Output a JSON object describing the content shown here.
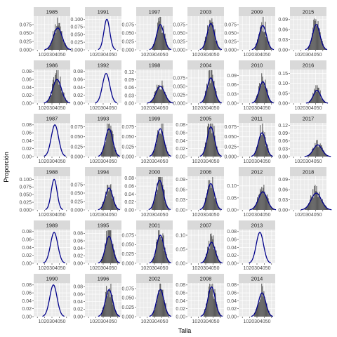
{
  "chart_data": {
    "type": "faceted-histogram-density",
    "xlabel": "Talla",
    "ylabel": "Proporción",
    "xlim": [
      5,
      55
    ],
    "x_ticks": [
      10,
      20,
      30,
      40,
      50
    ],
    "x_tick_label_text": "1020304050",
    "colors": {
      "bar": "#595959",
      "density": "#00008B",
      "strip_bg": "#d9d9d9",
      "panel_bg": "#ebebeb",
      "grid": "#ffffff"
    },
    "panels": [
      {
        "year": "1985",
        "col": 0,
        "row": 0,
        "ylim": [
          0,
          0.1
        ],
        "yticks": [
          "0.000",
          "0.025",
          "0.050",
          "0.075"
        ],
        "ytick_values": [
          0,
          0.025,
          0.05,
          0.075
        ],
        "mean": 38,
        "sd": 6,
        "peak": 0.065,
        "bars": true
      },
      {
        "year": "1986",
        "col": 0,
        "row": 1,
        "ylim": [
          0,
          0.085
        ],
        "yticks": [
          "0.00",
          "0.02",
          "0.04",
          "0.06",
          "0.08"
        ],
        "ytick_values": [
          0,
          0.02,
          0.04,
          0.06,
          0.08
        ],
        "mean": 37,
        "sd": 6,
        "peak": 0.06,
        "bars": true
      },
      {
        "year": "1987",
        "col": 0,
        "row": 2,
        "ylim": [
          0,
          0.085
        ],
        "yticks": [
          "0.00",
          "0.02",
          "0.04",
          "0.06",
          "0.08"
        ],
        "ytick_values": [
          0,
          0.02,
          0.04,
          0.06,
          0.08
        ],
        "mean": 34,
        "sd": 5,
        "peak": 0.08,
        "bars": false
      },
      {
        "year": "1988",
        "col": 0,
        "row": 3,
        "ylim": [
          0,
          0.11
        ],
        "yticks": [
          "0.000",
          "0.025",
          "0.050",
          "0.075",
          "0.100"
        ],
        "ytick_values": [
          0,
          0.025,
          0.05,
          0.075,
          0.1
        ],
        "mean": 33,
        "sd": 4,
        "peak": 0.1,
        "bars": false
      },
      {
        "year": "1989",
        "col": 0,
        "row": 4,
        "ylim": [
          0,
          0.085
        ],
        "yticks": [
          "0.00",
          "0.02",
          "0.04",
          "0.06",
          "0.08"
        ],
        "ytick_values": [
          0,
          0.02,
          0.04,
          0.06,
          0.08
        ],
        "mean": 33,
        "sd": 5,
        "peak": 0.078,
        "bars": false
      },
      {
        "year": "1990",
        "col": 0,
        "row": 5,
        "ylim": [
          0,
          0.085
        ],
        "yticks": [
          "0.00",
          "0.02",
          "0.04",
          "0.06",
          "0.08"
        ],
        "ytick_values": [
          0,
          0.02,
          0.04,
          0.06,
          0.08
        ],
        "mean": 32,
        "sd": 5,
        "peak": 0.08,
        "bars": false
      },
      {
        "year": "1991",
        "col": 1,
        "row": 0,
        "ylim": [
          0,
          0.11
        ],
        "yticks": [
          "0.000",
          "0.025",
          "0.050",
          "0.075",
          "0.100"
        ],
        "ytick_values": [
          0,
          0.025,
          0.05,
          0.075,
          0.1
        ],
        "mean": 35,
        "sd": 4,
        "peak": 0.1,
        "bars": false
      },
      {
        "year": "1992",
        "col": 1,
        "row": 1,
        "ylim": [
          0,
          0.085
        ],
        "yticks": [
          "0.00",
          "0.02",
          "0.04",
          "0.06",
          "0.08"
        ],
        "ytick_values": [
          0,
          0.02,
          0.04,
          0.06,
          0.08
        ],
        "mean": 34,
        "sd": 5,
        "peak": 0.075,
        "bars": false
      },
      {
        "year": "1993",
        "col": 1,
        "row": 2,
        "ylim": [
          0,
          0.085
        ],
        "yticks": [
          "0.000",
          "0.025",
          "0.050",
          "0.075"
        ],
        "ytick_values": [
          0,
          0.025,
          0.05,
          0.075
        ],
        "mean": 38,
        "sd": 5,
        "peak": 0.07,
        "bars": true
      },
      {
        "year": "1994",
        "col": 1,
        "row": 3,
        "ylim": [
          0,
          0.1
        ],
        "yticks": [
          "0.000",
          "0.025",
          "0.050",
          "0.075"
        ],
        "ytick_values": [
          0,
          0.025,
          0.05,
          0.075
        ],
        "mean": 38,
        "sd": 5,
        "peak": 0.065,
        "bars": true
      },
      {
        "year": "1995",
        "col": 1,
        "row": 4,
        "ylim": [
          0,
          0.09
        ],
        "yticks": [
          "0.00",
          "0.02",
          "0.04",
          "0.06",
          "0.08"
        ],
        "ytick_values": [
          0,
          0.02,
          0.04,
          0.06,
          0.08
        ],
        "mean": 38,
        "sd": 5,
        "peak": 0.072,
        "bars": true
      },
      {
        "year": "1996",
        "col": 1,
        "row": 5,
        "ylim": [
          0,
          0.09
        ],
        "yticks": [
          "0.00",
          "0.02",
          "0.04",
          "0.06",
          "0.08"
        ],
        "ytick_values": [
          0,
          0.02,
          0.04,
          0.06,
          0.08
        ],
        "mean": 38,
        "sd": 5,
        "peak": 0.072,
        "bars": true
      },
      {
        "year": "1997",
        "col": 2,
        "row": 0,
        "ylim": [
          0,
          0.1
        ],
        "yticks": [
          "0.000",
          "0.025",
          "0.050",
          "0.075"
        ],
        "ytick_values": [
          0,
          0.025,
          0.05,
          0.075
        ],
        "mean": 38,
        "sd": 5,
        "peak": 0.075,
        "bars": true
      },
      {
        "year": "1998",
        "col": 2,
        "row": 1,
        "ylim": [
          0,
          0.13
        ],
        "yticks": [
          "0.00",
          "0.03",
          "0.06",
          "0.09",
          "0.12"
        ],
        "ytick_values": [
          0,
          0.03,
          0.06,
          0.09,
          0.12
        ],
        "mean": 38,
        "sd": 6,
        "peak": 0.065,
        "bars": true
      },
      {
        "year": "1999",
        "col": 2,
        "row": 2,
        "ylim": [
          0,
          0.085
        ],
        "yticks": [
          "0.000",
          "0.025",
          "0.050",
          "0.075"
        ],
        "ytick_values": [
          0,
          0.025,
          0.05,
          0.075
        ],
        "mean": 38,
        "sd": 5,
        "peak": 0.07,
        "bars": true
      },
      {
        "year": "2000",
        "col": 2,
        "row": 3,
        "ylim": [
          0,
          0.085
        ],
        "yticks": [
          "0.00",
          "0.02",
          "0.04",
          "0.06",
          "0.08"
        ],
        "ytick_values": [
          0,
          0.02,
          0.04,
          0.06,
          0.08
        ],
        "mean": 37,
        "sd": 5,
        "peak": 0.075,
        "bars": true
      },
      {
        "year": "2001",
        "col": 2,
        "row": 4,
        "ylim": [
          0,
          0.09
        ],
        "yticks": [
          "0.000",
          "0.025",
          "0.050",
          "0.075"
        ],
        "ytick_values": [
          0,
          0.025,
          0.05,
          0.075
        ],
        "mean": 38,
        "sd": 5,
        "peak": 0.075,
        "bars": true
      },
      {
        "year": "2002",
        "col": 2,
        "row": 5,
        "ylim": [
          0,
          0.09
        ],
        "yticks": [
          "0.000",
          "0.025",
          "0.050",
          "0.075"
        ],
        "ytick_values": [
          0,
          0.025,
          0.05,
          0.075
        ],
        "mean": 38,
        "sd": 5,
        "peak": 0.072,
        "bars": true
      },
      {
        "year": "2003",
        "col": 3,
        "row": 0,
        "ylim": [
          0,
          0.1
        ],
        "yticks": [
          "0.000",
          "0.025",
          "0.050",
          "0.075"
        ],
        "ytick_values": [
          0,
          0.025,
          0.05,
          0.075
        ],
        "mean": 37,
        "sd": 5,
        "peak": 0.078,
        "bars": true
      },
      {
        "year": "2004",
        "col": 3,
        "row": 1,
        "ylim": [
          0,
          0.1
        ],
        "yticks": [
          "0.000",
          "0.025",
          "0.050",
          "0.075"
        ],
        "ytick_values": [
          0,
          0.025,
          0.05,
          0.075
        ],
        "mean": 37,
        "sd": 5,
        "peak": 0.075,
        "bars": true
      },
      {
        "year": "2005",
        "col": 3,
        "row": 2,
        "ylim": [
          0,
          0.085
        ],
        "yticks": [
          "0.00",
          "0.02",
          "0.04",
          "0.06",
          "0.08"
        ],
        "ytick_values": [
          0,
          0.02,
          0.04,
          0.06,
          0.08
        ],
        "mean": 37,
        "sd": 5,
        "peak": 0.075,
        "bars": true
      },
      {
        "year": "2006",
        "col": 3,
        "row": 3,
        "ylim": [
          0,
          0.1
        ],
        "yticks": [
          "0.00",
          "0.03",
          "0.06",
          "0.09"
        ],
        "ytick_values": [
          0,
          0.03,
          0.06,
          0.09
        ],
        "mean": 37,
        "sd": 5,
        "peak": 0.078,
        "bars": true
      },
      {
        "year": "2007",
        "col": 3,
        "row": 4,
        "ylim": [
          0,
          0.12
        ],
        "yticks": [
          "0.00",
          "0.05",
          "0.10"
        ],
        "ytick_values": [
          0,
          0.05,
          0.1
        ],
        "mean": 38,
        "sd": 5,
        "peak": 0.075,
        "bars": true
      },
      {
        "year": "2008",
        "col": 3,
        "row": 5,
        "ylim": [
          0,
          0.085
        ],
        "yticks": [
          "0.00",
          "0.02",
          "0.04",
          "0.06",
          "0.08"
        ],
        "ytick_values": [
          0,
          0.02,
          0.04,
          0.06,
          0.08
        ],
        "mean": 38,
        "sd": 5,
        "peak": 0.075,
        "bars": true
      },
      {
        "year": "2009",
        "col": 4,
        "row": 0,
        "ylim": [
          0,
          0.1
        ],
        "yticks": [
          "0.000",
          "0.025",
          "0.050",
          "0.075"
        ],
        "ytick_values": [
          0,
          0.025,
          0.05,
          0.075
        ],
        "mean": 38,
        "sd": 5,
        "peak": 0.072,
        "bars": true
      },
      {
        "year": "2010",
        "col": 4,
        "row": 1,
        "ylim": [
          0,
          0.11
        ],
        "yticks": [
          "0.00",
          "0.03",
          "0.06",
          "0.09"
        ],
        "ytick_values": [
          0,
          0.03,
          0.06,
          0.09
        ],
        "mean": 38,
        "sd": 5,
        "peak": 0.07,
        "bars": true
      },
      {
        "year": "2011",
        "col": 4,
        "row": 2,
        "ylim": [
          0,
          0.085
        ],
        "yticks": [
          "0.000",
          "0.025",
          "0.050",
          "0.075"
        ],
        "ytick_values": [
          0,
          0.025,
          0.05,
          0.075
        ],
        "mean": 37,
        "sd": 5,
        "peak": 0.06,
        "bars": true
      },
      {
        "year": "2012",
        "col": 4,
        "row": 3,
        "ylim": [
          0,
          0.14
        ],
        "yticks": [
          "0.00",
          "0.05",
          "0.10"
        ],
        "ytick_values": [
          0,
          0.05,
          0.1
        ],
        "mean": 38,
        "sd": 6,
        "peak": 0.075,
        "bars": true
      },
      {
        "year": "2013",
        "col": 4,
        "row": 4,
        "ylim": [
          0,
          0.085
        ],
        "yticks": [
          "0.00",
          "0.02",
          "0.04",
          "0.06",
          "0.08"
        ],
        "ytick_values": [
          0,
          0.02,
          0.04,
          0.06,
          0.08
        ],
        "mean": 34,
        "sd": 5,
        "peak": 0.078,
        "bars": false
      },
      {
        "year": "2014",
        "col": 4,
        "row": 5,
        "ylim": [
          0,
          0.085
        ],
        "yticks": [
          "0.00",
          "0.02",
          "0.04",
          "0.06",
          "0.08"
        ],
        "ytick_values": [
          0,
          0.02,
          0.04,
          0.06,
          0.08
        ],
        "mean": 37,
        "sd": 5,
        "peak": 0.06,
        "bars": true
      },
      {
        "year": "2015",
        "col": 5,
        "row": 0,
        "ylim": [
          0,
          0.1
        ],
        "yticks": [
          "0.00",
          "0.03",
          "0.06",
          "0.09"
        ],
        "ytick_values": [
          0,
          0.03,
          0.06,
          0.09
        ],
        "mean": 41,
        "sd": 5,
        "peak": 0.075,
        "bars": true
      },
      {
        "year": "2016",
        "col": 5,
        "row": 1,
        "ylim": [
          0,
          0.17
        ],
        "yticks": [
          "0.00",
          "0.05",
          "0.10",
          "0.15"
        ],
        "ytick_values": [
          0,
          0.05,
          0.1,
          0.15
        ],
        "mean": 42,
        "sd": 5,
        "peak": 0.065,
        "bars": true
      },
      {
        "year": "2017",
        "col": 5,
        "row": 2,
        "ylim": [
          0,
          0.13
        ],
        "yticks": [
          "0.00",
          "0.03",
          "0.06",
          "0.09",
          "0.12"
        ],
        "ytick_values": [
          0,
          0.03,
          0.06,
          0.09,
          0.12
        ],
        "mean": 43,
        "sd": 6,
        "peak": 0.045,
        "bars": true
      },
      {
        "year": "2018",
        "col": 5,
        "row": 3,
        "ylim": [
          0,
          0.1
        ],
        "yticks": [
          "0.00",
          "0.03",
          "0.06",
          "0.09"
        ],
        "ytick_values": [
          0,
          0.03,
          0.06,
          0.09
        ],
        "mean": 41,
        "sd": 7,
        "peak": 0.05,
        "bars": true
      }
    ]
  }
}
